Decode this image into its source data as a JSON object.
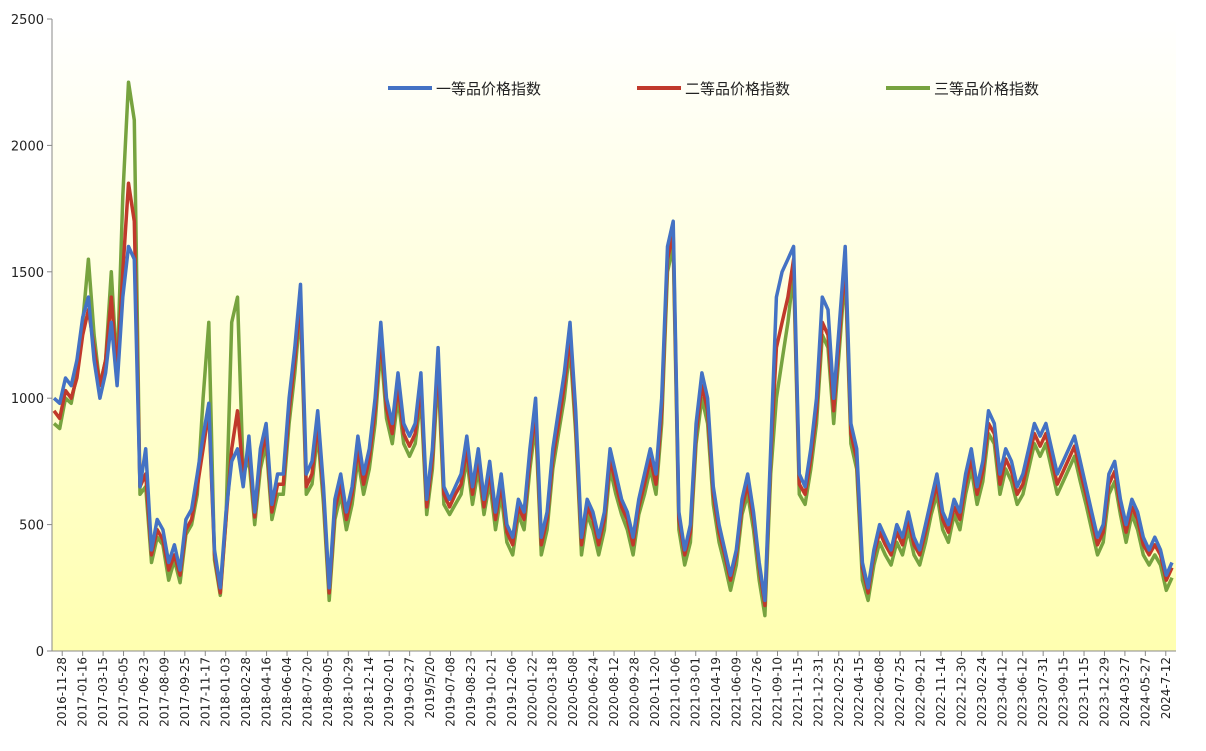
{
  "chart_data": {
    "type": "line",
    "ylim": [
      0,
      2500
    ],
    "yticks": [
      0,
      500,
      1000,
      1500,
      2000,
      2500
    ],
    "grid": false,
    "legend_position": "top-center",
    "x_tick_labels": [
      "2016-11-28",
      "2017-01-16",
      "2017-03-15",
      "2017-05-05",
      "2017-06-23",
      "2017-08-09",
      "2017-09-25",
      "2017-11-17",
      "2018-01-03",
      "2018-02-28",
      "2018-04-16",
      "2018-06-04",
      "2018-07-20",
      "2018-09-05",
      "2018-10-29",
      "2018-12-14",
      "2019-02-01",
      "2019-03-27",
      "2019/5/20",
      "2019-07-08",
      "2019-08-23",
      "2019-10-21",
      "2019-12-06",
      "2020-01-22",
      "2020-03-18",
      "2020-05-08",
      "2020-06-24",
      "2020-08-12",
      "2020-09-28",
      "2020-11-20",
      "2021-01-06",
      "2021-03-01",
      "2021-04-19",
      "2021-06-09",
      "2021-07-26",
      "2021-09-10",
      "2021-11-15",
      "2021-12-31",
      "2022-02-25",
      "2022-04-15",
      "2022-06-08",
      "2022-07-25",
      "2022-09-21",
      "2022-11-14",
      "2022-12-30",
      "2023-02-24",
      "2023-04-12",
      "2023-06-12",
      "2023-07-31",
      "2023-09-15",
      "2023-11-15",
      "2023-12-29",
      "2024-03-27",
      "2024-05-27",
      "2024-7-12"
    ],
    "series": [
      {
        "name": "一等品价格指数",
        "color": "#4472C4",
        "values": [
          1000,
          980,
          1080,
          1050,
          1150,
          1320,
          1400,
          1150,
          1000,
          1100,
          1300,
          1050,
          1400,
          1600,
          1550,
          650,
          800,
          400,
          520,
          480,
          350,
          420,
          320,
          520,
          560,
          700,
          850,
          980,
          400,
          250,
          550,
          750,
          800,
          650,
          850,
          550,
          800,
          900,
          580,
          700,
          700,
          1000,
          1200,
          1450,
          700,
          750,
          950,
          650,
          250,
          600,
          700,
          550,
          650,
          850,
          700,
          800,
          1000,
          1300,
          1000,
          900,
          1100,
          900,
          850,
          900,
          1100,
          600,
          800,
          1200,
          650,
          600,
          650,
          700,
          850,
          650,
          800,
          600,
          750,
          550,
          700,
          500,
          450,
          600,
          550,
          800,
          1000,
          450,
          550,
          800,
          950,
          1100,
          1300,
          950,
          450,
          600,
          550,
          450,
          550,
          800,
          700,
          600,
          550,
          450,
          600,
          700,
          800,
          700,
          1000,
          1600,
          1700,
          550,
          400,
          500,
          900,
          1100,
          1000,
          650,
          500,
          400,
          300,
          400,
          600,
          700,
          550,
          350,
          200,
          800,
          1400,
          1500,
          1550,
          1600,
          700,
          650,
          800,
          1000,
          1400,
          1350,
          1000,
          1300,
          1600,
          900,
          800,
          350,
          250,
          400,
          500,
          450,
          400,
          500,
          450,
          550,
          450,
          400,
          500,
          600,
          700,
          550,
          500,
          600,
          550,
          700,
          800,
          650,
          750,
          950,
          900,
          700,
          800,
          750,
          650,
          700,
          800,
          900,
          850,
          900,
          800,
          700,
          750,
          800,
          850,
          750,
          650,
          550,
          450,
          500,
          700,
          750,
          600,
          500,
          600,
          550,
          450,
          400,
          450,
          400,
          300,
          350
        ]
      },
      {
        "name": "二等品价格指数",
        "color": "#C0392B",
        "values": [
          950,
          920,
          1030,
          1000,
          1080,
          1250,
          1350,
          1200,
          1050,
          1150,
          1400,
          1100,
          1500,
          1850,
          1700,
          650,
          700,
          380,
          480,
          440,
          320,
          380,
          300,
          480,
          520,
          650,
          800,
          950,
          380,
          230,
          520,
          800,
          950,
          700,
          800,
          530,
          760,
          860,
          550,
          660,
          660,
          950,
          1150,
          1400,
          650,
          700,
          900,
          620,
          230,
          560,
          660,
          520,
          620,
          800,
          660,
          760,
          950,
          1250,
          960,
          860,
          1050,
          860,
          810,
          860,
          1050,
          570,
          760,
          1150,
          620,
          570,
          620,
          660,
          800,
          620,
          760,
          570,
          710,
          520,
          660,
          470,
          420,
          570,
          520,
          760,
          950,
          420,
          520,
          760,
          900,
          1050,
          1250,
          900,
          420,
          570,
          520,
          420,
          520,
          760,
          660,
          570,
          520,
          420,
          570,
          660,
          760,
          660,
          950,
          1550,
          1650,
          520,
          380,
          470,
          860,
          1050,
          950,
          620,
          470,
          380,
          280,
          380,
          570,
          660,
          520,
          330,
          180,
          760,
          1200,
          1300,
          1400,
          1550,
          660,
          620,
          760,
          950,
          1300,
          1250,
          950,
          1250,
          1550,
          860,
          760,
          330,
          230,
          380,
          470,
          420,
          380,
          470,
          420,
          520,
          420,
          380,
          470,
          570,
          660,
          520,
          470,
          570,
          520,
          660,
          760,
          620,
          710,
          900,
          860,
          660,
          760,
          710,
          620,
          660,
          760,
          860,
          810,
          860,
          760,
          660,
          710,
          760,
          810,
          710,
          620,
          520,
          420,
          470,
          660,
          710,
          570,
          470,
          570,
          520,
          420,
          380,
          420,
          380,
          280,
          330
        ]
      },
      {
        "name": "三等品价格指数",
        "color": "#77A33F",
        "values": [
          900,
          880,
          1000,
          980,
          1100,
          1300,
          1550,
          1250,
          1050,
          1150,
          1500,
          1100,
          1800,
          2250,
          2100,
          620,
          650,
          350,
          450,
          420,
          280,
          360,
          270,
          460,
          500,
          620,
          1000,
          1300,
          360,
          220,
          520,
          1300,
          1400,
          700,
          760,
          500,
          720,
          820,
          520,
          620,
          620,
          900,
          1100,
          1350,
          620,
          660,
          860,
          580,
          200,
          520,
          620,
          480,
          580,
          760,
          620,
          720,
          900,
          1200,
          920,
          820,
          1000,
          820,
          770,
          820,
          1000,
          540,
          720,
          1100,
          580,
          540,
          580,
          620,
          760,
          580,
          720,
          540,
          670,
          480,
          620,
          430,
          380,
          540,
          480,
          720,
          900,
          380,
          480,
          720,
          860,
          1000,
          1200,
          860,
          380,
          540,
          480,
          380,
          480,
          720,
          620,
          540,
          480,
          380,
          540,
          620,
          720,
          620,
          900,
          1500,
          1600,
          480,
          340,
          430,
          820,
          1000,
          900,
          580,
          430,
          340,
          240,
          340,
          540,
          620,
          480,
          280,
          140,
          700,
          1000,
          1150,
          1300,
          1500,
          620,
          580,
          720,
          900,
          1250,
          1200,
          900,
          1200,
          1500,
          820,
          720,
          280,
          200,
          340,
          430,
          380,
          340,
          430,
          380,
          480,
          380,
          340,
          430,
          540,
          620,
          480,
          430,
          540,
          480,
          620,
          720,
          580,
          670,
          860,
          820,
          620,
          720,
          670,
          580,
          620,
          720,
          820,
          770,
          820,
          720,
          620,
          670,
          720,
          770,
          670,
          580,
          480,
          380,
          430,
          620,
          670,
          540,
          430,
          540,
          480,
          380,
          340,
          380,
          340,
          240,
          290
        ]
      }
    ]
  }
}
